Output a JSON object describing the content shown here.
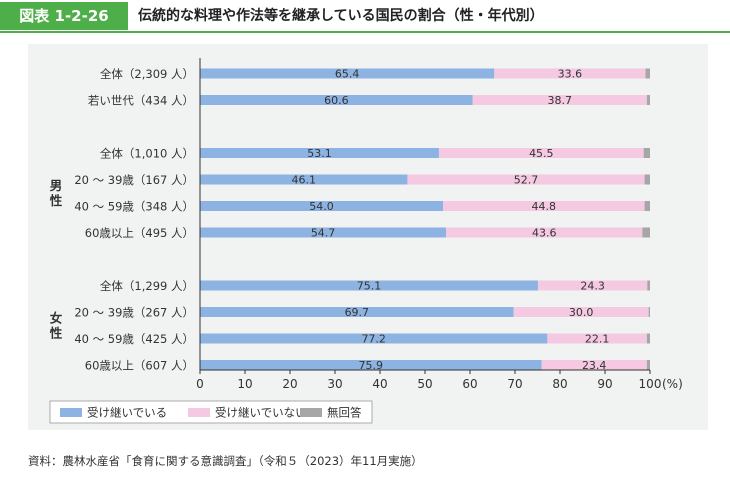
{
  "header": {
    "figure_number": "図表 1-2-26",
    "title": "伝統的な料理や作法等を継承している国民の割合（性・年代別）"
  },
  "colors": {
    "header_green": "#4eae49",
    "panel_bg": "#f1f2f2",
    "inherited": "#8db3e2",
    "not_inherited": "#f4c9e1",
    "no_answer": "#a6a6a6"
  },
  "source": "資料：農林水産省「食育に関する意識調査」（令和５（2023）年11月実施）",
  "chart_data": {
    "type": "bar",
    "orientation": "horizontal",
    "stacked": true,
    "groups": [
      {
        "label": "",
        "rows": [
          {
            "category": "全体（2,309 人）",
            "values": [
              65.4,
              33.6,
              1.0
            ]
          },
          {
            "category": "若い世代（434 人）",
            "values": [
              60.6,
              38.7,
              0.7
            ]
          }
        ]
      },
      {
        "label": "男性",
        "rows": [
          {
            "category": "全体（1,010 人）",
            "values": [
              53.1,
              45.5,
              1.4
            ]
          },
          {
            "category": "20 ～ 39歳（167 人）",
            "values": [
              46.1,
              52.7,
              1.2
            ]
          },
          {
            "category": "40 ～ 59歳（348 人）",
            "values": [
              54.0,
              44.8,
              1.2
            ]
          },
          {
            "category": "60歳以上（495 人）",
            "values": [
              54.7,
              43.6,
              1.7
            ]
          }
        ]
      },
      {
        "label": "女性",
        "rows": [
          {
            "category": "全体（1,299 人）",
            "values": [
              75.1,
              24.3,
              0.6
            ]
          },
          {
            "category": "20 ～ 39歳（267 人）",
            "values": [
              69.7,
              30.0,
              0.3
            ]
          },
          {
            "category": "40 ～ 59歳（425 人）",
            "values": [
              77.2,
              22.1,
              0.7
            ]
          },
          {
            "category": "60歳以上（607 人）",
            "values": [
              75.9,
              23.4,
              0.7
            ]
          }
        ]
      }
    ],
    "series": [
      {
        "name": "受け継いでいる",
        "color": "#8db3e2",
        "show_labels": true
      },
      {
        "name": "受け継いでいない",
        "color": "#f4c9e1",
        "show_labels": true
      },
      {
        "name": "無回答",
        "color": "#a6a6a6",
        "show_labels": false
      }
    ],
    "xlim": [
      0,
      100
    ],
    "xticks": [
      0,
      10,
      20,
      30,
      40,
      50,
      60,
      70,
      80,
      90,
      100
    ],
    "xunit": "(%)",
    "legend_position": "bottom-left",
    "grid": false
  }
}
